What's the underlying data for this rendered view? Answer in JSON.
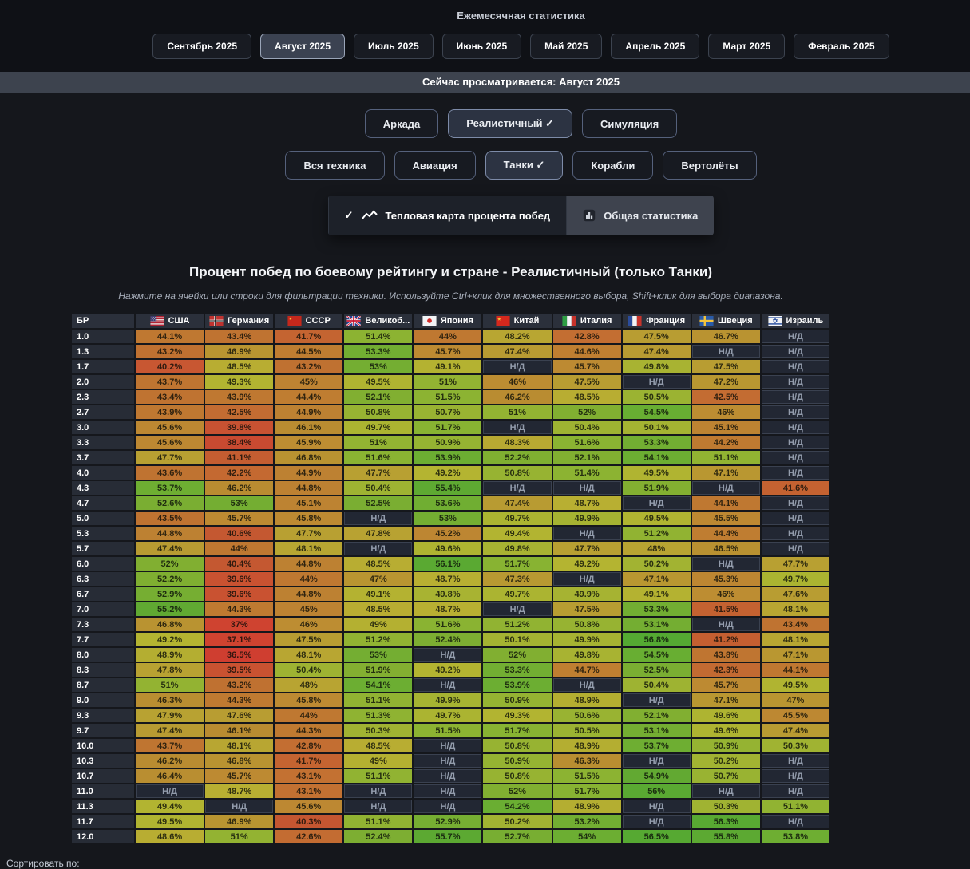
{
  "header": {
    "title": "Ежемесячная статистика",
    "months": [
      "Сентябрь 2025",
      "Август 2025",
      "Июль 2025",
      "Июнь 2025",
      "Май 2025",
      "Апрель 2025",
      "Март 2025",
      "Февраль 2025"
    ],
    "selected_month": "Август 2025",
    "viewing_banner": "Сейчас просматривается: Август 2025"
  },
  "filters": {
    "modes": [
      "Аркада",
      "Реалистичный",
      "Симуляция"
    ],
    "selected_mode": "Реалистичный",
    "vehicle_types": [
      "Вся техника",
      "Авиация",
      "Танки",
      "Корабли",
      "Вертолёты"
    ],
    "selected_vehicle": "Танки",
    "check_mark": "✓"
  },
  "view_toggle": {
    "heatmap_label": "Тепловая карта процента побед",
    "stats_label": "Общая статистика",
    "selected": "heatmap"
  },
  "heatmap": {
    "title": "Процент побед по боевому рейтингу и стране - Реалистичный (только Танки)",
    "hint": "Нажмите на ячейки или строки для фильтрации техники. Используйте Ctrl+клик для множественного выбора, Shift+клик для выбора диапазона.",
    "na_label": "Н/Д"
  },
  "footer": {
    "sort_label": "Сортировать по:"
  },
  "chart_data": {
    "type": "heatmap",
    "title": "Процент побед по боевому рейтингу и стране - Реалистичный (только Танки)",
    "value_unit": "%",
    "value_range": [
      36,
      57
    ],
    "br_header": "БР",
    "columns": [
      {
        "label": "США",
        "flag": "usa"
      },
      {
        "label": "Германия",
        "flag": "germany"
      },
      {
        "label": "СССР",
        "flag": "ussr"
      },
      {
        "label": "Великоб...",
        "flag": "uk"
      },
      {
        "label": "Япония",
        "flag": "japan"
      },
      {
        "label": "Китай",
        "flag": "china"
      },
      {
        "label": "Италия",
        "flag": "italy"
      },
      {
        "label": "Франция",
        "flag": "france"
      },
      {
        "label": "Швеция",
        "flag": "sweden"
      },
      {
        "label": "Израиль",
        "flag": "israel"
      }
    ],
    "rows": [
      "1.0",
      "1.3",
      "1.7",
      "2.0",
      "2.3",
      "2.7",
      "3.0",
      "3.3",
      "3.7",
      "4.0",
      "4.3",
      "4.7",
      "5.0",
      "5.3",
      "5.7",
      "6.0",
      "6.3",
      "6.7",
      "7.0",
      "7.3",
      "7.7",
      "8.0",
      "8.3",
      "8.7",
      "9.0",
      "9.3",
      "9.7",
      "10.0",
      "10.3",
      "10.7",
      "11.0",
      "11.3",
      "11.7",
      "12.0"
    ],
    "values": [
      [
        44.1,
        43.4,
        41.7,
        51.4,
        44,
        48.2,
        42.8,
        47.5,
        46.7,
        null
      ],
      [
        43.2,
        46.9,
        44.5,
        53.3,
        45.7,
        47.4,
        44.6,
        47.4,
        null,
        null
      ],
      [
        40.2,
        48.5,
        43.2,
        53,
        49.1,
        null,
        45.7,
        49.8,
        47.5,
        null
      ],
      [
        43.7,
        49.3,
        45,
        49.5,
        51,
        46,
        47.5,
        null,
        47.2,
        null
      ],
      [
        43.4,
        43.9,
        44.4,
        52.1,
        51.5,
        46.2,
        48.5,
        50.5,
        42.5,
        null
      ],
      [
        43.9,
        42.5,
        44.9,
        50.8,
        50.7,
        51,
        52,
        54.5,
        46,
        null
      ],
      [
        45.6,
        39.8,
        46.1,
        49.7,
        51.7,
        null,
        50.4,
        50.1,
        45.1,
        null
      ],
      [
        45.6,
        38.4,
        45.9,
        51,
        50.9,
        48.3,
        51.6,
        53.3,
        44.2,
        null
      ],
      [
        47.7,
        41.1,
        46.8,
        51.6,
        53.9,
        52.2,
        52.1,
        54.1,
        51.1,
        null
      ],
      [
        43.6,
        42.2,
        44.9,
        47.7,
        49.2,
        50.8,
        51.4,
        49.5,
        47.1,
        null
      ],
      [
        53.7,
        46.2,
        44.8,
        50.4,
        55.4,
        null,
        null,
        51.9,
        null,
        41.6
      ],
      [
        52.6,
        53,
        45.1,
        52.5,
        53.6,
        47.4,
        48.7,
        null,
        44.1,
        null
      ],
      [
        43.5,
        45.7,
        45.8,
        null,
        53,
        49.7,
        49.9,
        49.5,
        45.5,
        null
      ],
      [
        44.8,
        40.6,
        47.7,
        47.8,
        45.2,
        49.4,
        null,
        51.2,
        44.4,
        null
      ],
      [
        47.4,
        44,
        48.1,
        null,
        49.6,
        49.8,
        47.7,
        48,
        46.5,
        null
      ],
      [
        52,
        40.4,
        44.8,
        48.5,
        56.1,
        51.7,
        49.2,
        50.2,
        null,
        47.7
      ],
      [
        52.2,
        39.6,
        44,
        47,
        48.7,
        47.3,
        null,
        47.1,
        45.3,
        49.7
      ],
      [
        52.9,
        39.6,
        44.8,
        49.1,
        49.8,
        49.7,
        49.9,
        49.1,
        46,
        47.6
      ],
      [
        55.2,
        44.3,
        45,
        48.5,
        48.7,
        null,
        47.5,
        53.3,
        41.5,
        48.1
      ],
      [
        46.8,
        37,
        46,
        49,
        51.6,
        51.2,
        50.8,
        53.1,
        null,
        43.4
      ],
      [
        49.2,
        37.1,
        47.5,
        51.2,
        52.4,
        50.1,
        49.9,
        56.8,
        41.2,
        48.1
      ],
      [
        48.9,
        36.5,
        48.1,
        53,
        null,
        52,
        49.8,
        54.5,
        43.8,
        47.1
      ],
      [
        47.8,
        39.5,
        50.4,
        51.9,
        49.2,
        53.3,
        44.7,
        52.5,
        42.3,
        44.1
      ],
      [
        51,
        43.2,
        48,
        54.1,
        null,
        53.9,
        null,
        50.4,
        45.7,
        49.5
      ],
      [
        46.3,
        44.3,
        45.8,
        51.1,
        49.9,
        50.9,
        48.9,
        null,
        47.1,
        47
      ],
      [
        47.9,
        47.6,
        44,
        51.3,
        49.7,
        49.3,
        50.6,
        52.1,
        49.6,
        45.5
      ],
      [
        47.4,
        46.1,
        44.3,
        50.3,
        51.5,
        51.7,
        50.5,
        53.1,
        49.6,
        47.4
      ],
      [
        43.7,
        48.1,
        42.8,
        48.5,
        null,
        50.8,
        48.9,
        53.7,
        50.9,
        50.3
      ],
      [
        46.2,
        46.8,
        41.7,
        49,
        null,
        50.9,
        46.3,
        null,
        50.2,
        null
      ],
      [
        46.4,
        45.7,
        43.1,
        51.1,
        null,
        50.8,
        51.5,
        54.9,
        50.7,
        null
      ],
      [
        null,
        48.7,
        43.1,
        null,
        null,
        52,
        51.7,
        56,
        null,
        null
      ],
      [
        49.4,
        null,
        45.6,
        null,
        null,
        54.2,
        48.9,
        null,
        50.3,
        51.1
      ],
      [
        49.5,
        46.9,
        40.3,
        51.1,
        52.9,
        50.2,
        53.2,
        null,
        56.3,
        null
      ],
      [
        48.6,
        51,
        42.6,
        52.4,
        55.7,
        52.7,
        54,
        56.5,
        55.8,
        53.8
      ]
    ],
    "na_label": "Н/Д",
    "color_scale": {
      "low": "#d23c2a",
      "mid": "#9a8c2a",
      "high": "#57a531",
      "na_bg": "#222733"
    }
  }
}
